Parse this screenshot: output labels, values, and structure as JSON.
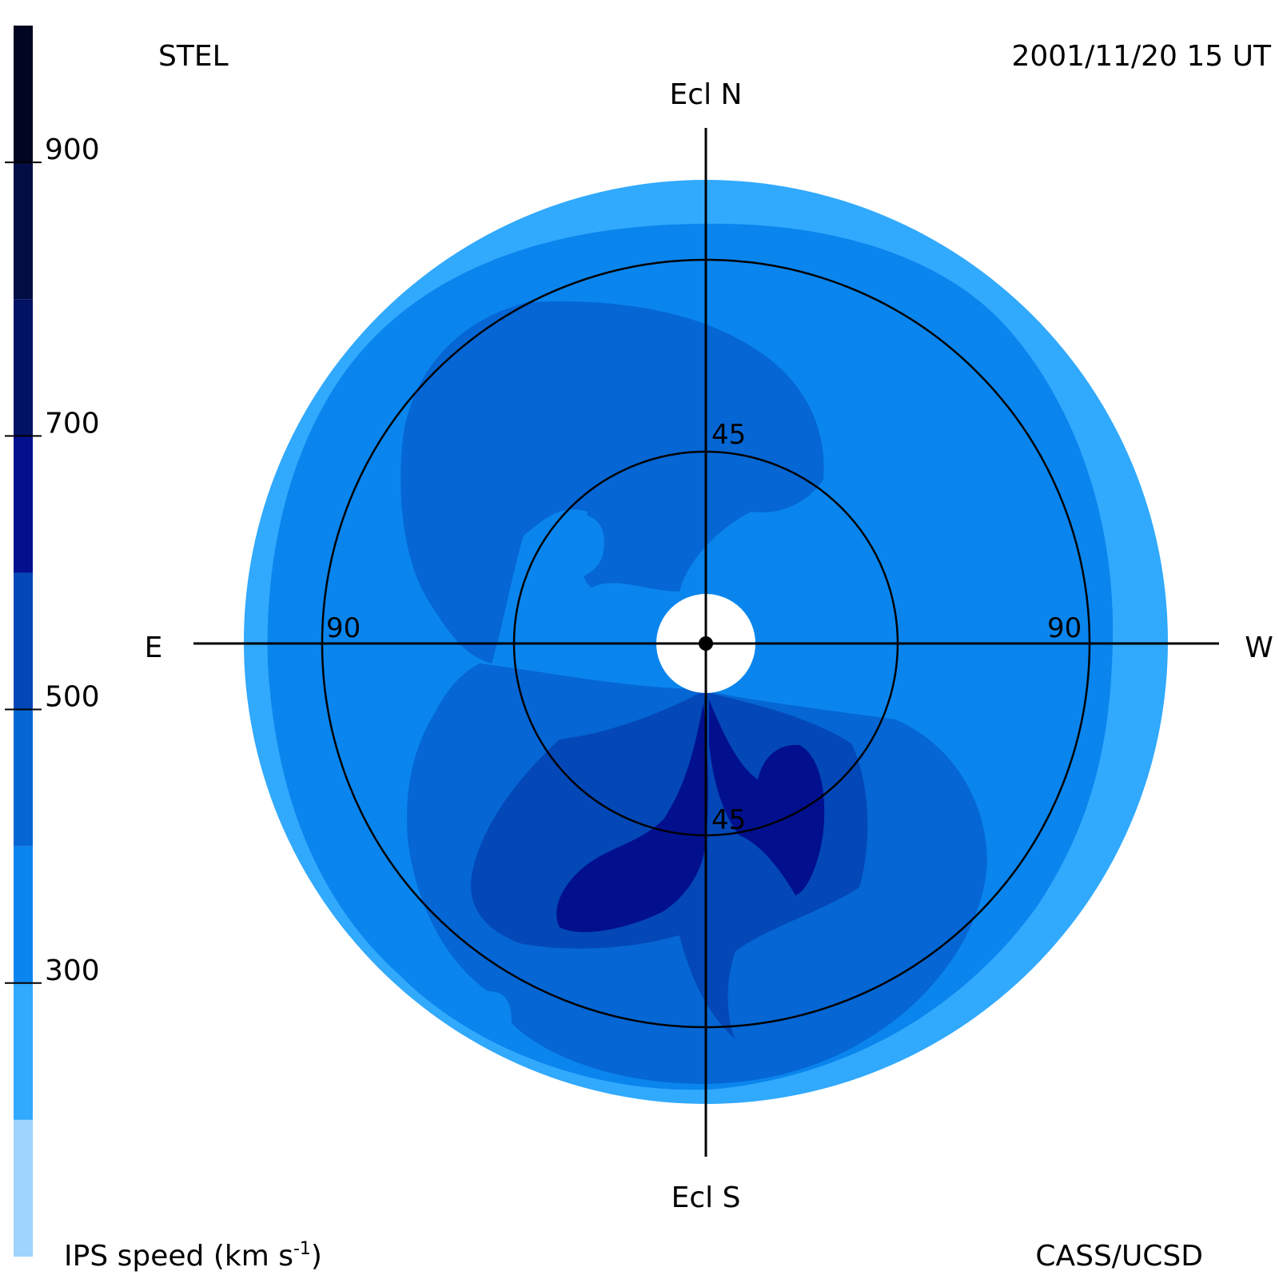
{
  "header": {
    "observatory": "STEL",
    "timestamp": "2001/11/20 15 UT"
  },
  "footer": {
    "colorbar_label": "IPS speed (km s",
    "colorbar_unit_exponent": "-1",
    "colorbar_label_close": ")",
    "credit": "CASS/UCSD"
  },
  "chart_data": {
    "type": "heatmap",
    "projection": "sky map centered on the Sun",
    "directions": {
      "north": "Ecl N",
      "south": "Ecl S",
      "east": "E",
      "west": "W"
    },
    "rings": [
      {
        "elongation_deg": 45,
        "labels": [
          "45",
          "45"
        ]
      },
      {
        "elongation_deg": 90,
        "labels": [
          "90",
          "90"
        ]
      }
    ],
    "colorbar": {
      "range": [
        100,
        1000
      ],
      "ticks": [
        {
          "value": 300,
          "label": "300"
        },
        {
          "value": 500,
          "label": "500"
        },
        {
          "value": 700,
          "label": "700"
        },
        {
          "value": 900,
          "label": "900"
        }
      ],
      "bands": [
        {
          "from": 100,
          "to": 200,
          "color": "#9fd4ff"
        },
        {
          "from": 200,
          "to": 300,
          "color": "#31a9fd"
        },
        {
          "from": 300,
          "to": 400,
          "color": "#0a85ed"
        },
        {
          "from": 400,
          "to": 500,
          "color": "#0566d4"
        },
        {
          "from": 500,
          "to": 600,
          "color": "#0447b6"
        },
        {
          "from": 600,
          "to": 700,
          "color": "#02108e"
        },
        {
          "from": 700,
          "to": 800,
          "color": "#011163"
        },
        {
          "from": 800,
          "to": 900,
          "color": "#020d44"
        },
        {
          "from": 900,
          "to": 1000,
          "color": "#010521"
        }
      ]
    },
    "regions_speed_km_s": {
      "outer_rim": 250,
      "background": 350,
      "north_lobe": 450,
      "south_fan": 450,
      "south_lobe_core": 550,
      "south_fast_streams": 650,
      "inner_patches": 350
    }
  }
}
